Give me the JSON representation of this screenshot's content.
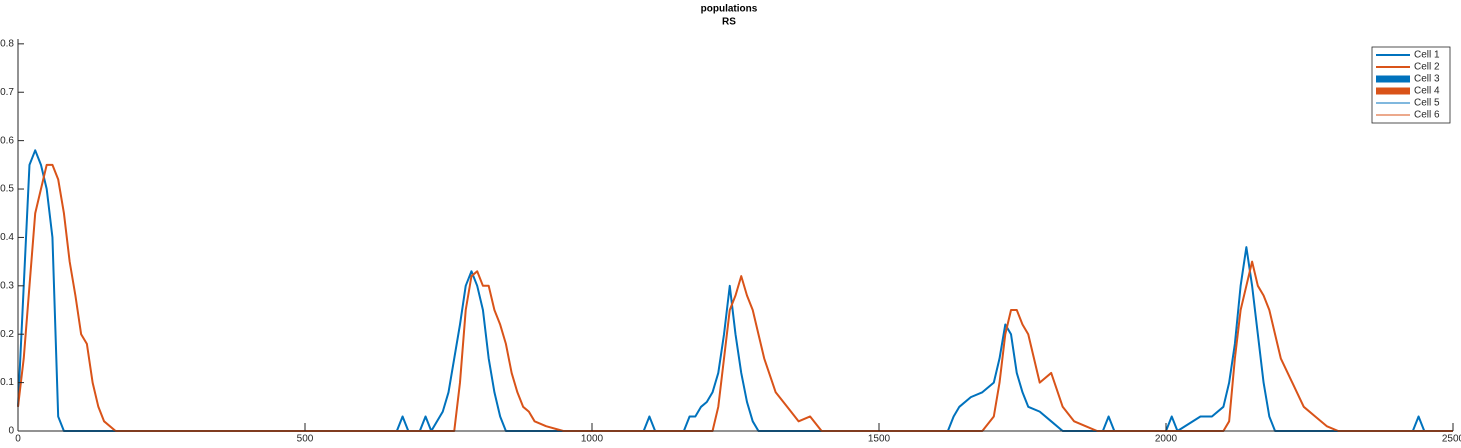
{
  "chart_data": {
    "type": "line",
    "title": "populations",
    "subtitle": "RS",
    "x": [
      0,
      10,
      20,
      30,
      40,
      50,
      60,
      70,
      80,
      90,
      100,
      110,
      120,
      130,
      140,
      150,
      170,
      200,
      660,
      670,
      680,
      700,
      710,
      720,
      740,
      750,
      760,
      770,
      780,
      790,
      800,
      810,
      820,
      830,
      840,
      850,
      860,
      870,
      880,
      890,
      900,
      920,
      950,
      1090,
      1100,
      1110,
      1160,
      1170,
      1180,
      1190,
      1200,
      1210,
      1220,
      1230,
      1240,
      1250,
      1260,
      1270,
      1280,
      1290,
      1300,
      1320,
      1340,
      1360,
      1380,
      1400,
      1420,
      1620,
      1630,
      1640,
      1660,
      1680,
      1700,
      1710,
      1720,
      1730,
      1740,
      1750,
      1760,
      1780,
      1800,
      1820,
      1840,
      1860,
      1880,
      1890,
      1900,
      1910,
      2000,
      2010,
      2020,
      2060,
      2080,
      2100,
      2110,
      2120,
      2130,
      2140,
      2150,
      2160,
      2170,
      2180,
      2190,
      2200,
      2220,
      2240,
      2260,
      2280,
      2300,
      2430,
      2440,
      2450,
      2500
    ],
    "series": [
      {
        "name": "Cell 1",
        "color": "#0072bd",
        "width": 2,
        "values": [
          0.05,
          0.3,
          0.55,
          0.58,
          0.55,
          0.5,
          0.4,
          0.03,
          0,
          0,
          0,
          0,
          0,
          0,
          0,
          0,
          0,
          0,
          0,
          0.03,
          0,
          0,
          0.03,
          0,
          0.04,
          0.08,
          0.15,
          0.22,
          0.3,
          0.33,
          0.3,
          0.25,
          0.15,
          0.08,
          0.03,
          0,
          0,
          0,
          0,
          0,
          0,
          0,
          0,
          0,
          0.03,
          0,
          0,
          0.03,
          0.03,
          0.05,
          0.06,
          0.08,
          0.12,
          0.2,
          0.3,
          0.2,
          0.12,
          0.06,
          0.02,
          0,
          0,
          0,
          0,
          0,
          0,
          0,
          0,
          0,
          0.03,
          0.05,
          0.07,
          0.08,
          0.1,
          0.15,
          0.22,
          0.2,
          0.12,
          0.08,
          0.05,
          0.04,
          0.02,
          0,
          0,
          0,
          0,
          0,
          0.03,
          0,
          0,
          0.03,
          0,
          0.03,
          0.03,
          0.05,
          0.1,
          0.18,
          0.3,
          0.38,
          0.3,
          0.2,
          0.1,
          0.03,
          0,
          0,
          0,
          0,
          0,
          0,
          0,
          0,
          0.03,
          0,
          0
        ]
      },
      {
        "name": "Cell 2",
        "color": "#d95319",
        "width": 2,
        "values": [
          0.05,
          0.15,
          0.3,
          0.45,
          0.5,
          0.55,
          0.55,
          0.52,
          0.45,
          0.35,
          0.28,
          0.2,
          0.18,
          0.1,
          0.05,
          0.02,
          0,
          0,
          0,
          0,
          0,
          0,
          0,
          0,
          0,
          0,
          0,
          0.1,
          0.25,
          0.32,
          0.33,
          0.3,
          0.3,
          0.25,
          0.22,
          0.18,
          0.12,
          0.08,
          0.05,
          0.04,
          0.02,
          0.01,
          0,
          0,
          0,
          0,
          0,
          0,
          0,
          0,
          0,
          0,
          0.05,
          0.15,
          0.25,
          0.28,
          0.32,
          0.28,
          0.25,
          0.2,
          0.15,
          0.08,
          0.05,
          0.02,
          0.03,
          0,
          0,
          0,
          0,
          0,
          0,
          0,
          0.03,
          0.1,
          0.2,
          0.25,
          0.25,
          0.22,
          0.2,
          0.1,
          0.12,
          0.05,
          0.02,
          0.01,
          0,
          0,
          0,
          0,
          0,
          0,
          0,
          0,
          0,
          0,
          0.02,
          0.15,
          0.25,
          0.3,
          0.35,
          0.3,
          0.28,
          0.25,
          0.2,
          0.15,
          0.1,
          0.05,
          0.03,
          0.01,
          0,
          0,
          0,
          0,
          0
        ]
      },
      {
        "name": "Cell 3",
        "color": "#0072bd",
        "width": 7
      },
      {
        "name": "Cell 4",
        "color": "#d95319",
        "width": 7
      },
      {
        "name": "Cell 5",
        "color": "#0072bd",
        "width": 1
      },
      {
        "name": "Cell 6",
        "color": "#d95319",
        "width": 1
      }
    ],
    "xlim": [
      0,
      2500
    ],
    "xticks": [
      0,
      500,
      1000,
      1500,
      2000,
      2500
    ],
    "ylim": [
      0,
      0.81
    ],
    "yticks": [
      0,
      0.1,
      0.2,
      0.3,
      0.4,
      0.5,
      0.6,
      0.7,
      0.8
    ],
    "legend": "upper right"
  }
}
